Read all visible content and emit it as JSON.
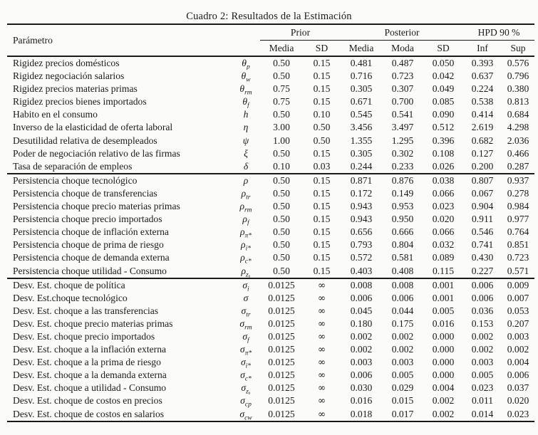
{
  "page": {
    "background": "#fbfbfa",
    "text_color": "#1a1a1a",
    "rule_color": "#1a1a1a"
  },
  "caption": "Cuadro 2: Resultados de la Estimación",
  "header": {
    "param": "Parámetro",
    "groups": [
      {
        "label": "Prior"
      },
      {
        "label": "Posterior"
      },
      {
        "label": "HPD 90 %"
      }
    ],
    "columns": [
      "Media",
      "SD",
      "Media",
      "Moda",
      "SD",
      "Inf",
      "Sup"
    ]
  },
  "sections": [
    {
      "name": "structural-parameters",
      "rows": [
        {
          "param": "Rigidez precios domésticos",
          "symbol": "θ",
          "sub": "p",
          "values": [
            "0.50",
            "0.15",
            "0.481",
            "0.487",
            "0.050",
            "0.393",
            "0.576"
          ]
        },
        {
          "param": "Rigidez negociación salarios",
          "symbol": "θ",
          "sub": "w",
          "values": [
            "0.50",
            "0.15",
            "0.716",
            "0.723",
            "0.042",
            "0.637",
            "0.796"
          ]
        },
        {
          "param": "Rigidez precios materias primas",
          "symbol": "θ",
          "sub": "rm",
          "values": [
            "0.75",
            "0.15",
            "0.305",
            "0.307",
            "0.049",
            "0.224",
            "0.380"
          ]
        },
        {
          "param": "Rigidez precios bienes importados",
          "symbol": "θ",
          "sub": "f",
          "values": [
            "0.75",
            "0.15",
            "0.671",
            "0.700",
            "0.085",
            "0.538",
            "0.813"
          ]
        },
        {
          "param": "Habito en el consumo",
          "symbol": "h",
          "sub": "",
          "values": [
            "0.50",
            "0.10",
            "0.545",
            "0.541",
            "0.090",
            "0.414",
            "0.684"
          ]
        },
        {
          "param": "Inverso de la elasticidad de oferta laboral",
          "symbol": "η",
          "sub": "",
          "values": [
            "3.00",
            "0.50",
            "3.456",
            "3.497",
            "0.512",
            "2.619",
            "4.298"
          ]
        },
        {
          "param": "Desutilidad relativa de desempleados",
          "symbol": "ψ",
          "sub": "",
          "values": [
            "1.00",
            "0.50",
            "1.355",
            "1.295",
            "0.396",
            "0.682",
            "2.036"
          ]
        },
        {
          "param": "Poder de negociación relativo de las firmas",
          "symbol": "ξ",
          "sub": "",
          "values": [
            "0.50",
            "0.15",
            "0.305",
            "0.302",
            "0.108",
            "0.127",
            "0.466"
          ]
        },
        {
          "param": "Tasa de separación de empleos",
          "symbol": "δ",
          "sub": "",
          "values": [
            "0.10",
            "0.03",
            "0.244",
            "0.233",
            "0.026",
            "0.200",
            "0.287"
          ]
        }
      ]
    },
    {
      "name": "shock-persistence",
      "rows": [
        {
          "param": "Persistencia choque tecnológico",
          "symbol": "ρ",
          "sub": "",
          "values": [
            "0.50",
            "0.15",
            "0.871",
            "0.876",
            "0.038",
            "0.807",
            "0.937"
          ]
        },
        {
          "param": "Persistencia choque de transferencias",
          "symbol": "ρ",
          "sub": "tr",
          "values": [
            "0.50",
            "0.15",
            "0.172",
            "0.149",
            "0.066",
            "0.067",
            "0.278"
          ]
        },
        {
          "param": "Persistencia choque precio materias primas",
          "symbol": "ρ",
          "sub": "rm",
          "values": [
            "0.50",
            "0.15",
            "0.943",
            "0.953",
            "0.023",
            "0.904",
            "0.984"
          ]
        },
        {
          "param": "Persistencia choque precio importados",
          "symbol": "ρ",
          "sub": "f",
          "values": [
            "0.50",
            "0.15",
            "0.943",
            "0.950",
            "0.020",
            "0.911",
            "0.977"
          ]
        },
        {
          "param": "Persistencia choque de inflación externa",
          "symbol": "ρ",
          "sub": "π*",
          "values": [
            "0.50",
            "0.15",
            "0.656",
            "0.666",
            "0.066",
            "0.546",
            "0.764"
          ]
        },
        {
          "param": "Persistencia choque de prima de riesgo",
          "symbol": "ρ",
          "sub": "i*",
          "values": [
            "0.50",
            "0.15",
            "0.793",
            "0.804",
            "0.032",
            "0.741",
            "0.851"
          ]
        },
        {
          "param": "Persistencia choque de demanda externa",
          "symbol": "ρ",
          "sub": "c*",
          "values": [
            "0.50",
            "0.15",
            "0.572",
            "0.581",
            "0.089",
            "0.430",
            "0.723"
          ]
        },
        {
          "param": "Persistencia choque utilidad - Consumo",
          "symbol": "ρ",
          "sub": "zᵤ",
          "values": [
            "0.50",
            "0.15",
            "0.403",
            "0.408",
            "0.115",
            "0.227",
            "0.571"
          ]
        }
      ]
    },
    {
      "name": "shock-standard-deviations",
      "rows": [
        {
          "param": "Desv. Est. choque de política",
          "symbol": "σ",
          "sub": "i",
          "values": [
            "0.0125",
            "∞",
            "0.008",
            "0.008",
            "0.001",
            "0.006",
            "0.009"
          ]
        },
        {
          "param": "Desv. Est.choque tecnológico",
          "symbol": "σ",
          "sub": "",
          "values": [
            "0.0125",
            "∞",
            "0.006",
            "0.006",
            "0.001",
            "0.006",
            "0.007"
          ]
        },
        {
          "param": "Desv. Est. choque a las transferencias",
          "symbol": "σ",
          "sub": "tr",
          "values": [
            "0.0125",
            "∞",
            "0.045",
            "0.044",
            "0.005",
            "0.036",
            "0.053"
          ]
        },
        {
          "param": "Desv. Est. choque precio materias primas",
          "symbol": "σ",
          "sub": "rm",
          "values": [
            "0.0125",
            "∞",
            "0.180",
            "0.175",
            "0.016",
            "0.153",
            "0.207"
          ]
        },
        {
          "param": "Desv. Est. choque precio importados",
          "symbol": "σ",
          "sub": "f",
          "values": [
            "0.0125",
            "∞",
            "0.002",
            "0.002",
            "0.000",
            "0.002",
            "0.003"
          ]
        },
        {
          "param": "Desv. Est. choque a la inflación externa",
          "symbol": "σ",
          "sub": "π*",
          "values": [
            "0.0125",
            "∞",
            "0.002",
            "0.002",
            "0.000",
            "0.002",
            "0.002"
          ]
        },
        {
          "param": "Desv. Est. choque a la prima de riesgo",
          "symbol": "σ",
          "sub": "i*",
          "values": [
            "0.0125",
            "∞",
            "0.003",
            "0.003",
            "0.000",
            "0.003",
            "0.004"
          ]
        },
        {
          "param": "Desv. Est. choque a la demanda externa",
          "symbol": "σ",
          "sub": "c*",
          "values": [
            "0.0125",
            "∞",
            "0.006",
            "0.005",
            "0.000",
            "0.005",
            "0.006"
          ]
        },
        {
          "param": "Desv. Est. choque a utilidad - Consumo",
          "symbol": "σ",
          "sub": "zᵤ",
          "values": [
            "0.0125",
            "∞",
            "0.030",
            "0.029",
            "0.004",
            "0.023",
            "0.037"
          ]
        },
        {
          "param": "Desv. Est. choque de costos en precios",
          "symbol": "σ",
          "sub": "cp",
          "values": [
            "0.0125",
            "∞",
            "0.016",
            "0.015",
            "0.002",
            "0.011",
            "0.020"
          ]
        },
        {
          "param": "Desv. Est. choque de costos en salarios",
          "symbol": "σ",
          "sub": "cw",
          "values": [
            "0.0125",
            "∞",
            "0.018",
            "0.017",
            "0.002",
            "0.014",
            "0.023"
          ]
        }
      ]
    }
  ]
}
